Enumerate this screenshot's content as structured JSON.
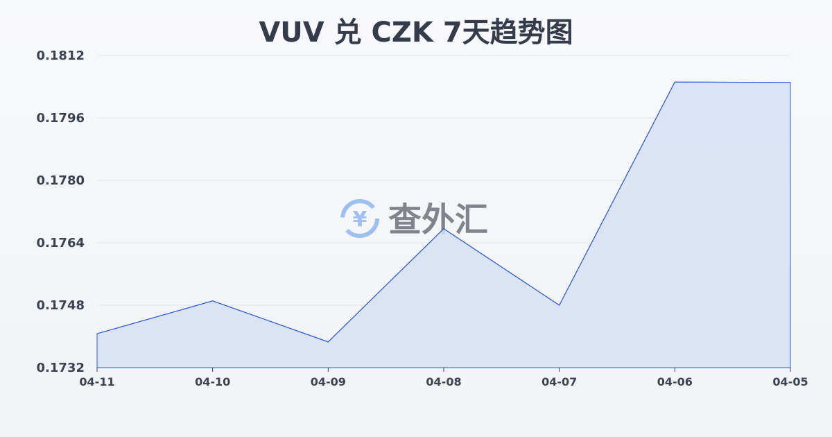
{
  "chart_data": {
    "type": "area",
    "title": "VUV 兑 CZK 7天趋势图",
    "xlabel": "",
    "ylabel": "",
    "categories": [
      "04-11",
      "04-10",
      "04-09",
      "04-08",
      "04-07",
      "04-06",
      "04-05"
    ],
    "values": [
      0.17407,
      0.17491,
      0.17386,
      0.17676,
      0.1748,
      0.18052,
      0.18051
    ],
    "ylim": [
      0.1732,
      0.1812
    ],
    "yticks": [
      "0.1732",
      "0.1748",
      "0.1764",
      "0.1780",
      "0.1796",
      "0.1812"
    ],
    "grid": true,
    "colors": {
      "line": "#2a5bd7",
      "fill": "#d6e1f5"
    }
  },
  "watermark": {
    "text": "查外汇",
    "icon": "yen-exchange-icon"
  }
}
